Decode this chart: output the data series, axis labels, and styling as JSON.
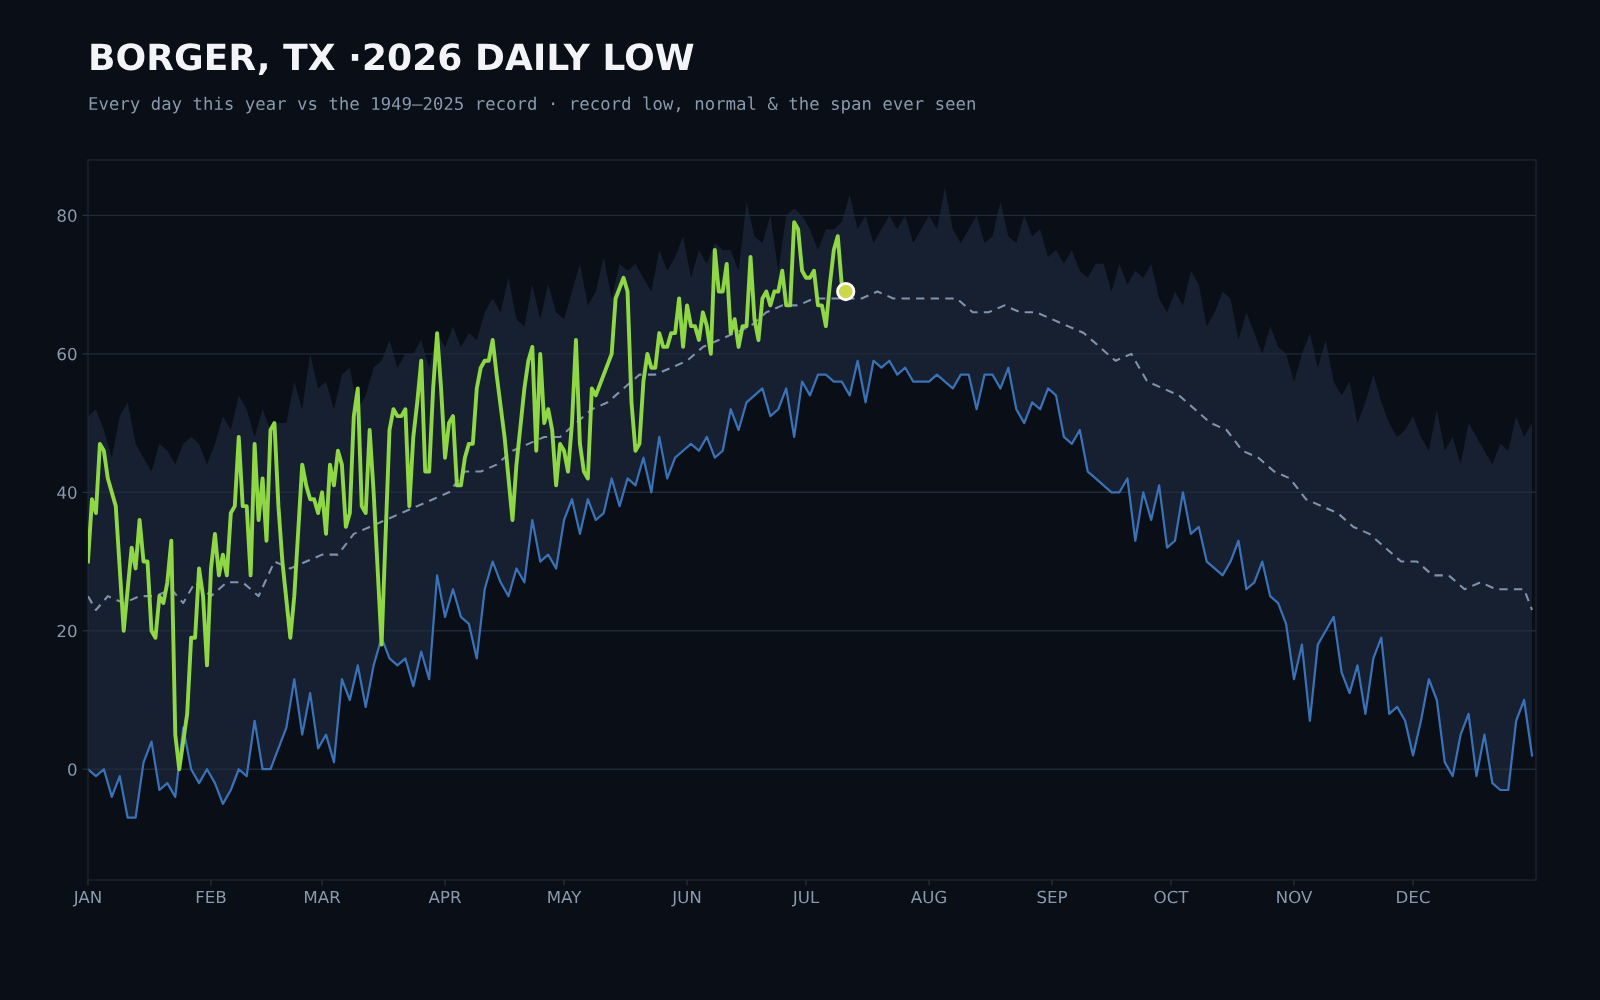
{
  "chart_data": {
    "type": "line",
    "title": "BORGER, TX ·2026 DAILY LOW",
    "subtitle": "Every day this year vs the 1949–2025 record · record low, normal & the span ever seen",
    "xlim": [
      "2026-01-01",
      "2027-01-01"
    ],
    "ylim": [
      -16,
      88
    ],
    "xticks": [
      {
        "value": "2026-01-01",
        "label": "JAN"
      },
      {
        "value": "2026-02-01",
        "label": "FEB"
      },
      {
        "value": "2026-03-01",
        "label": "MAR"
      },
      {
        "value": "2026-04-01",
        "label": "APR"
      },
      {
        "value": "2026-05-01",
        "label": "MAY"
      },
      {
        "value": "2026-06-01",
        "label": "JUN"
      },
      {
        "value": "2026-07-01",
        "label": "JUL"
      },
      {
        "value": "2026-08-01",
        "label": "AUG"
      },
      {
        "value": "2026-09-01",
        "label": "SEP"
      },
      {
        "value": "2026-10-01",
        "label": "OCT"
      },
      {
        "value": "2026-11-01",
        "label": "NOV"
      },
      {
        "value": "2026-12-01",
        "label": "DEC"
      }
    ],
    "yticks": [
      0,
      20,
      40,
      60,
      80
    ],
    "grid": "y",
    "x": [
      "2026-01-01",
      "2026-01-03",
      "2026-01-05",
      "2026-01-07",
      "2026-01-09",
      "2026-01-11",
      "2026-01-13",
      "2026-01-15",
      "2026-01-17",
      "2026-01-19",
      "2026-01-21",
      "2026-01-23",
      "2026-01-25",
      "2026-01-27",
      "2026-01-29",
      "2026-01-31",
      "2026-02-02",
      "2026-02-04",
      "2026-02-06",
      "2026-02-08",
      "2026-02-10",
      "2026-02-12",
      "2026-02-14",
      "2026-02-16",
      "2026-02-18",
      "2026-02-20",
      "2026-02-22",
      "2026-02-24",
      "2026-02-26",
      "2026-02-28",
      "2026-03-02",
      "2026-03-04",
      "2026-03-06",
      "2026-03-08",
      "2026-03-10",
      "2026-03-12",
      "2026-03-14",
      "2026-03-16",
      "2026-03-18",
      "2026-03-20",
      "2026-03-22",
      "2026-03-24",
      "2026-03-26",
      "2026-03-28",
      "2026-03-30",
      "2026-04-01",
      "2026-04-03",
      "2026-04-05",
      "2026-04-07",
      "2026-04-09",
      "2026-04-11",
      "2026-04-13",
      "2026-04-15",
      "2026-04-17",
      "2026-04-19",
      "2026-04-21",
      "2026-04-23",
      "2026-04-25",
      "2026-04-27",
      "2026-04-29",
      "2026-05-01",
      "2026-05-03",
      "2026-05-05",
      "2026-05-07",
      "2026-05-09",
      "2026-05-11",
      "2026-05-13",
      "2026-05-15",
      "2026-05-17",
      "2026-05-19",
      "2026-05-21",
      "2026-05-23",
      "2026-05-25",
      "2026-05-27",
      "2026-05-29",
      "2026-05-31",
      "2026-06-02",
      "2026-06-04",
      "2026-06-06",
      "2026-06-08",
      "2026-06-10",
      "2026-06-12",
      "2026-06-14",
      "2026-06-16",
      "2026-06-18",
      "2026-06-20",
      "2026-06-22",
      "2026-06-24",
      "2026-06-26",
      "2026-06-28",
      "2026-06-30",
      "2026-07-02",
      "2026-07-04",
      "2026-07-06",
      "2026-07-08",
      "2026-07-10",
      "2026-07-12",
      "2026-07-14",
      "2026-07-16",
      "2026-07-18",
      "2026-07-20",
      "2026-07-22",
      "2026-07-24",
      "2026-07-26",
      "2026-07-28",
      "2026-07-30",
      "2026-08-01",
      "2026-08-03",
      "2026-08-05",
      "2026-08-07",
      "2026-08-09",
      "2026-08-11",
      "2026-08-13",
      "2026-08-15",
      "2026-08-17",
      "2026-08-19",
      "2026-08-21",
      "2026-08-23",
      "2026-08-25",
      "2026-08-27",
      "2026-08-29",
      "2026-08-31",
      "2026-09-02",
      "2026-09-04",
      "2026-09-06",
      "2026-09-08",
      "2026-09-10",
      "2026-09-12",
      "2026-09-14",
      "2026-09-16",
      "2026-09-18",
      "2026-09-20",
      "2026-09-22",
      "2026-09-24",
      "2026-09-26",
      "2026-09-28",
      "2026-09-30",
      "2026-10-02",
      "2026-10-04",
      "2026-10-06",
      "2026-10-08",
      "2026-10-10",
      "2026-10-12",
      "2026-10-14",
      "2026-10-16",
      "2026-10-18",
      "2026-10-20",
      "2026-10-22",
      "2026-10-24",
      "2026-10-26",
      "2026-10-28",
      "2026-10-30",
      "2026-11-01",
      "2026-11-03",
      "2026-11-05",
      "2026-11-07",
      "2026-11-09",
      "2026-11-11",
      "2026-11-13",
      "2026-11-15",
      "2026-11-17",
      "2026-11-19",
      "2026-11-21",
      "2026-11-23",
      "2026-11-25",
      "2026-11-27",
      "2026-11-29",
      "2026-12-01",
      "2026-12-03",
      "2026-12-05",
      "2026-12-07",
      "2026-12-09",
      "2026-12-11",
      "2026-12-13",
      "2026-12-15",
      "2026-12-17",
      "2026-12-19",
      "2026-12-21",
      "2026-12-23",
      "2026-12-25",
      "2026-12-27",
      "2026-12-29",
      "2026-12-31"
    ],
    "series": [
      {
        "color": "#3a72b8",
        "upper": [
          51,
          52,
          49,
          45,
          51,
          53,
          47,
          45,
          43,
          47,
          46,
          44,
          47,
          48,
          47,
          44,
          47,
          51,
          49,
          54,
          52,
          48,
          52,
          49,
          50,
          50,
          56,
          52,
          60,
          55,
          56,
          52,
          57,
          58,
          52,
          54,
          58,
          59,
          62,
          58,
          60,
          60,
          62,
          58,
          63,
          61,
          64,
          61,
          63,
          62,
          66,
          68,
          66,
          71,
          65,
          64,
          70,
          65,
          70,
          66,
          65,
          69,
          73,
          67,
          69,
          74,
          68,
          73,
          72,
          73,
          71,
          69,
          75,
          72,
          74,
          77,
          71,
          75,
          73,
          76,
          75,
          75,
          72,
          82,
          77,
          76,
          80,
          72,
          80,
          81,
          80,
          78,
          75,
          78,
          78,
          79,
          83,
          78,
          80,
          76,
          78,
          80,
          78,
          80,
          76,
          78,
          80,
          78,
          84,
          78,
          76,
          78,
          80,
          76,
          77,
          82,
          77,
          76,
          80,
          77,
          78,
          74,
          75,
          73,
          75,
          72,
          71,
          73,
          73,
          69,
          73,
          70,
          72,
          71,
          73,
          68,
          66,
          69,
          67,
          72,
          70,
          64,
          66,
          69,
          68,
          62,
          66,
          63,
          60,
          64,
          61,
          60,
          56,
          60,
          63,
          58,
          62,
          56,
          54,
          56,
          50,
          53,
          57,
          53,
          50,
          48,
          49,
          51,
          48,
          46,
          52,
          46,
          48,
          44,
          50,
          48,
          46,
          44,
          47,
          46,
          51,
          48,
          50
        ],
        "values": [
          0,
          -1,
          0,
          -4,
          -1,
          -7,
          -7,
          1,
          4,
          -3,
          -2,
          -4,
          6,
          0,
          -2,
          0,
          -2,
          -5,
          -3,
          0,
          -1,
          7,
          0,
          0,
          3,
          6,
          13,
          5,
          11,
          3,
          5,
          1,
          13,
          10,
          15,
          9,
          15,
          19,
          16,
          15,
          16,
          12,
          17,
          13,
          28,
          22,
          26,
          22,
          21,
          16,
          26,
          30,
          27,
          25,
          29,
          27,
          36,
          30,
          31,
          29,
          36,
          39,
          34,
          39,
          36,
          37,
          42,
          38,
          42,
          41,
          45,
          40,
          48,
          42,
          45,
          46,
          47,
          46,
          48,
          45,
          46,
          52,
          49,
          53,
          54,
          55,
          51,
          52,
          55,
          48,
          56,
          54,
          57,
          57,
          56,
          56,
          54,
          59,
          53,
          59,
          58,
          59,
          57,
          58,
          56,
          56,
          56,
          57,
          56,
          55,
          57,
          57,
          52,
          57,
          57,
          55,
          58,
          52,
          50,
          53,
          52,
          55,
          54,
          48,
          47,
          49,
          43,
          42,
          41,
          40,
          40,
          42,
          33,
          40,
          36,
          41,
          32,
          33,
          40,
          34,
          35,
          30,
          29,
          28,
          30,
          33,
          26,
          27,
          30,
          25,
          24,
          21,
          13,
          18,
          7,
          18,
          20,
          22,
          14,
          11,
          15,
          8,
          16,
          19,
          8,
          9,
          7,
          2,
          7,
          13,
          10,
          1,
          -1,
          5,
          8,
          -1,
          5,
          -2,
          -3,
          -3,
          7,
          10,
          2
        ],
        "lower": [
          0,
          -1,
          0,
          -4,
          -1,
          -7,
          -7,
          1,
          4,
          -3,
          -2,
          -4,
          6,
          0,
          -2,
          0,
          -2,
          -5,
          -3,
          0,
          -1,
          7,
          0,
          0,
          3,
          6,
          13,
          5,
          11,
          3,
          5,
          1,
          13,
          10,
          15,
          9,
          15,
          19,
          16,
          15,
          16,
          12,
          17,
          13,
          28,
          22,
          26,
          22,
          21,
          16,
          26,
          30,
          27,
          25,
          29,
          27,
          36,
          30,
          31,
          29,
          36,
          39,
          34,
          39,
          36,
          37,
          42,
          38,
          42,
          41,
          45,
          40,
          48,
          42,
          45,
          46,
          47,
          46,
          48,
          45,
          46,
          52,
          49,
          53,
          54,
          55,
          51,
          52,
          55,
          48,
          56,
          54,
          57,
          57,
          56,
          56,
          54,
          59,
          53,
          59,
          58,
          59,
          57,
          58,
          56,
          56,
          56,
          57,
          56,
          55,
          57,
          57,
          52,
          57,
          57,
          55,
          58,
          52,
          50,
          53,
          52,
          55,
          54,
          48,
          47,
          49,
          43,
          42,
          41,
          40,
          40,
          42,
          33,
          40,
          36,
          41,
          32,
          33,
          40,
          34,
          35,
          30,
          29,
          28,
          30,
          33,
          26,
          27,
          30,
          25,
          24,
          21,
          13,
          18,
          7,
          18,
          20,
          22,
          14,
          11,
          15,
          8,
          16,
          19,
          8,
          9,
          7,
          2,
          7,
          13,
          10,
          1,
          -1,
          5,
          8,
          -1,
          5,
          -2,
          -3,
          -3,
          7,
          10,
          2
        ]
      },
      {
        "color": "#7f93ad",
        "line_style": "dashed",
        "x": [
          "2026-01-01",
          "2026-01-03",
          "2026-01-06",
          "2026-01-10",
          "2026-01-14",
          "2026-01-18",
          "2026-01-22",
          "2026-01-25",
          "2026-01-28",
          "2026-02-01",
          "2026-02-05",
          "2026-02-09",
          "2026-02-13",
          "2026-02-17",
          "2026-02-21",
          "2026-02-25",
          "2026-03-01",
          "2026-03-05",
          "2026-03-09",
          "2026-03-13",
          "2026-03-17",
          "2026-03-21",
          "2026-03-25",
          "2026-03-29",
          "2026-04-02",
          "2026-04-06",
          "2026-04-10",
          "2026-04-14",
          "2026-04-18",
          "2026-04-22",
          "2026-04-26",
          "2026-04-30",
          "2026-05-04",
          "2026-05-08",
          "2026-05-12",
          "2026-05-16",
          "2026-05-20",
          "2026-05-24",
          "2026-05-28",
          "2026-06-01",
          "2026-06-05",
          "2026-06-09",
          "2026-06-13",
          "2026-06-17",
          "2026-06-21",
          "2026-06-25",
          "2026-06-29",
          "2026-07-03",
          "2026-07-07",
          "2026-07-11",
          "2026-07-15",
          "2026-07-19",
          "2026-07-23",
          "2026-07-27",
          "2026-07-31",
          "2026-08-04",
          "2026-08-08",
          "2026-08-12",
          "2026-08-16",
          "2026-08-20",
          "2026-08-24",
          "2026-08-28",
          "2026-09-01",
          "2026-09-05",
          "2026-09-09",
          "2026-09-13",
          "2026-09-17",
          "2026-09-21",
          "2026-09-25",
          "2026-09-29",
          "2026-10-03",
          "2026-10-07",
          "2026-10-11",
          "2026-10-15",
          "2026-10-19",
          "2026-10-23",
          "2026-10-27",
          "2026-10-31",
          "2026-11-04",
          "2026-11-08",
          "2026-11-12",
          "2026-11-16",
          "2026-11-20",
          "2026-11-24",
          "2026-11-28",
          "2026-12-02",
          "2026-12-06",
          "2026-12-10",
          "2026-12-14",
          "2026-12-18",
          "2026-12-22",
          "2026-12-26",
          "2026-12-29",
          "2026-12-31"
        ],
        "values": [
          25,
          23,
          25,
          24,
          25,
          25,
          26,
          24,
          27,
          25,
          27,
          27,
          25,
          30,
          29,
          30,
          31,
          31,
          34,
          35,
          36,
          37,
          38,
          39,
          40,
          43,
          43,
          44,
          46,
          47,
          48,
          48,
          50,
          52,
          53,
          55,
          57,
          57,
          58,
          59,
          61,
          62,
          63,
          64,
          66,
          67,
          67,
          68,
          68,
          68,
          68,
          69,
          68,
          68,
          68,
          68,
          68,
          66,
          66,
          67,
          66,
          66,
          65,
          64,
          63,
          61,
          59,
          60,
          56,
          55,
          54,
          52,
          50,
          49,
          46,
          45,
          43,
          42,
          39,
          38,
          37,
          35,
          34,
          32,
          30,
          30,
          28,
          28,
          26,
          27,
          26,
          26,
          26,
          23
        ]
      },
      {
        "color": "#8fd744",
        "x": [
          "2026-01-01",
          "2026-01-02",
          "2026-01-03",
          "2026-01-04",
          "2026-01-05",
          "2026-01-06",
          "2026-01-08",
          "2026-01-10",
          "2026-01-12",
          "2026-01-13",
          "2026-01-14",
          "2026-01-15",
          "2026-01-16",
          "2026-01-17",
          "2026-01-18",
          "2026-01-19",
          "2026-01-20",
          "2026-01-21",
          "2026-01-22",
          "2026-01-23",
          "2026-01-24",
          "2026-01-25",
          "2026-01-26",
          "2026-01-27",
          "2026-01-28",
          "2026-01-29",
          "2026-01-30",
          "2026-01-31",
          "2026-02-01",
          "2026-02-02",
          "2026-02-03",
          "2026-02-04",
          "2026-02-05",
          "2026-02-06",
          "2026-02-07",
          "2026-02-08",
          "2026-02-09",
          "2026-02-10",
          "2026-02-11",
          "2026-02-12",
          "2026-02-13",
          "2026-02-14",
          "2026-02-15",
          "2026-02-16",
          "2026-02-17",
          "2026-02-18",
          "2026-02-19",
          "2026-02-21",
          "2026-02-22",
          "2026-02-24",
          "2026-02-25",
          "2026-02-26",
          "2026-02-27",
          "2026-02-28",
          "2026-03-01",
          "2026-03-02",
          "2026-03-03",
          "2026-03-04",
          "2026-03-05",
          "2026-03-06",
          "2026-03-07",
          "2026-03-08",
          "2026-03-09",
          "2026-03-10",
          "2026-03-11",
          "2026-03-12",
          "2026-03-13",
          "2026-03-14",
          "2026-03-16",
          "2026-03-18",
          "2026-03-19",
          "2026-03-20",
          "2026-03-21",
          "2026-03-22",
          "2026-03-23",
          "2026-03-24",
          "2026-03-25",
          "2026-03-26",
          "2026-03-27",
          "2026-03-28",
          "2026-03-29",
          "2026-03-30",
          "2026-03-31",
          "2026-04-01",
          "2026-04-02",
          "2026-04-03",
          "2026-04-04",
          "2026-04-05",
          "2026-04-06",
          "2026-04-07",
          "2026-04-08",
          "2026-04-09",
          "2026-04-10",
          "2026-04-11",
          "2026-04-12",
          "2026-04-13",
          "2026-04-14",
          "2026-04-16",
          "2026-04-18",
          "2026-04-19",
          "2026-04-21",
          "2026-04-22",
          "2026-04-23",
          "2026-04-24",
          "2026-04-25",
          "2026-04-26",
          "2026-04-27",
          "2026-04-28",
          "2026-04-29",
          "2026-04-30",
          "2026-05-01",
          "2026-05-02",
          "2026-05-03",
          "2026-05-04",
          "2026-05-05",
          "2026-05-06",
          "2026-05-07",
          "2026-05-08",
          "2026-05-09",
          "2026-05-11",
          "2026-05-13",
          "2026-05-14",
          "2026-05-16",
          "2026-05-17",
          "2026-05-18",
          "2026-05-19",
          "2026-05-20",
          "2026-05-21",
          "2026-05-22",
          "2026-05-23",
          "2026-05-24",
          "2026-05-25",
          "2026-05-26",
          "2026-05-27",
          "2026-05-28",
          "2026-05-29",
          "2026-05-30",
          "2026-05-31",
          "2026-06-01",
          "2026-06-02",
          "2026-06-03",
          "2026-06-04",
          "2026-06-05",
          "2026-06-06",
          "2026-06-07",
          "2026-06-08",
          "2026-06-09",
          "2026-06-10",
          "2026-06-11",
          "2026-06-12",
          "2026-06-13",
          "2026-06-14",
          "2026-06-15",
          "2026-06-16",
          "2026-06-17",
          "2026-06-18",
          "2026-06-19",
          "2026-06-20",
          "2026-06-21",
          "2026-06-22",
          "2026-06-23",
          "2026-06-24",
          "2026-06-25",
          "2026-06-26",
          "2026-06-27",
          "2026-06-28",
          "2026-06-29",
          "2026-06-30",
          "2026-07-01",
          "2026-07-02",
          "2026-07-03",
          "2026-07-04",
          "2026-07-05",
          "2026-07-06",
          "2026-07-07",
          "2026-07-08",
          "2026-07-09",
          "2026-07-10",
          "2026-07-11"
        ],
        "values": [
          30,
          39,
          37,
          47,
          46,
          42,
          38,
          20,
          32,
          29,
          36,
          30,
          30,
          20,
          19,
          25,
          24,
          27,
          33,
          5,
          0,
          4,
          8,
          19,
          19,
          29,
          25,
          15,
          29,
          34,
          28,
          31,
          28,
          37,
          38,
          48,
          38,
          38,
          28,
          47,
          36,
          42,
          33,
          49,
          50,
          38,
          30,
          19,
          25,
          44,
          41,
          39,
          39,
          37,
          40,
          34,
          44,
          41,
          46,
          44,
          35,
          37,
          51,
          55,
          38,
          37,
          49,
          40,
          18,
          49,
          52,
          51,
          51,
          52,
          38,
          48,
          53,
          59,
          43,
          43,
          55,
          63,
          55,
          45,
          50,
          51,
          41,
          41,
          45,
          47,
          47,
          55,
          58,
          59,
          59,
          62,
          57,
          48,
          36,
          44,
          55,
          59,
          61,
          46,
          60,
          50,
          52,
          49,
          41,
          47,
          46,
          43,
          50,
          62,
          47,
          43,
          42,
          55,
          54,
          57,
          60,
          68,
          71,
          69,
          53,
          46,
          47,
          56,
          60,
          58,
          58,
          63,
          61,
          61,
          63,
          63,
          68,
          61,
          67,
          64,
          64,
          62,
          66,
          64,
          60,
          75,
          69,
          69,
          73,
          63,
          65,
          61,
          64,
          64,
          74,
          65,
          62,
          68,
          69,
          67,
          69,
          69,
          72,
          67,
          67,
          79,
          78,
          72,
          71,
          71,
          72,
          67,
          67,
          64,
          70,
          75,
          77,
          70,
          69
        ]
      },
      {
        "type": "scatter",
        "color": "#c9d94a",
        "marker": "circle",
        "x": [
          "2026-07-11"
        ],
        "values": [
          69
        ]
      }
    ]
  }
}
